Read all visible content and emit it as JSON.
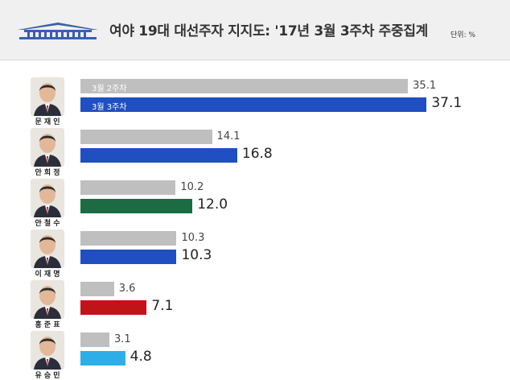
{
  "header": {
    "title": "여야 19대 대선주자 지지도: '17년 3월 3주차 주중집계",
    "unit": "단위: %"
  },
  "chart_data": {
    "type": "bar",
    "title": "여야 19대 대선주자 지지도: '17년 3월 3주차 주중집계",
    "unit": "%",
    "categories": [
      "문재인",
      "안희정",
      "안철수",
      "이재명",
      "홍준표",
      "유승민"
    ],
    "series": [
      {
        "name": "3월 2주차",
        "values": [
          35.1,
          14.1,
          10.2,
          10.3,
          3.6,
          3.1
        ],
        "color": "#bfbfbf"
      },
      {
        "name": "3월 3주차",
        "values": [
          37.1,
          16.8,
          12.0,
          10.3,
          7.1,
          4.8
        ],
        "colors": [
          "#1f4fc1",
          "#1f4fc1",
          "#1d6b45",
          "#1f4fc1",
          "#c0141b",
          "#2eaee8"
        ]
      }
    ],
    "value_labels_prev": [
      "35.1",
      "14.1",
      "10.2",
      "10.3",
      "3.6",
      "3.1"
    ],
    "value_labels_cur": [
      "37.1",
      "16.8",
      "12.0",
      "10.3",
      "7.1",
      "4.8"
    ],
    "orientation": "horizontal",
    "legend": "inside-first-bars"
  },
  "people": [
    {
      "name": "문 재 인",
      "icon": "candidate-photo"
    },
    {
      "name": "안 희 정",
      "icon": "candidate-photo"
    },
    {
      "name": "안 철 수",
      "icon": "candidate-photo"
    },
    {
      "name": "이 재 명",
      "icon": "candidate-photo"
    },
    {
      "name": "홍 준 표",
      "icon": "candidate-photo"
    },
    {
      "name": "유 승 민",
      "icon": "candidate-photo"
    }
  ],
  "colors": {
    "header_bg": "#f0f0f0",
    "prev_bar": "#bfbfbf",
    "logo_blue": "#3a5fb0"
  }
}
